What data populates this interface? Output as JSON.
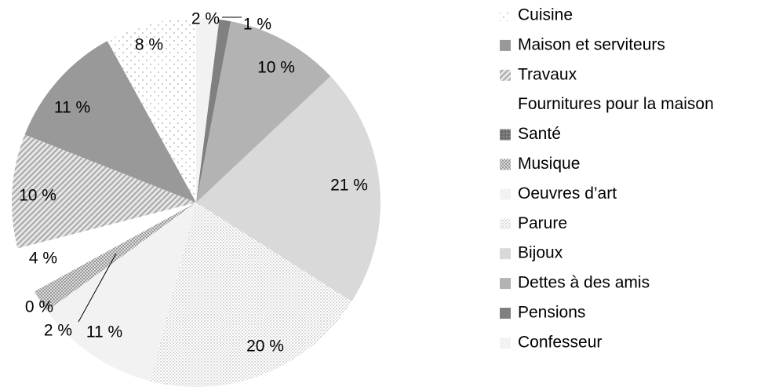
{
  "chart_data": {
    "type": "pie",
    "categories": [
      "Cuisine",
      "Maison et serviteurs",
      "Travaux",
      "Fournitures pour la maison",
      "Santé",
      "Musique",
      "Oeuvres d’art",
      "Parure",
      "Bijoux",
      "Dettes à des amis",
      "Pensions",
      "Confesseur"
    ],
    "values": [
      8,
      11,
      10,
      4,
      0,
      2,
      11,
      20,
      21,
      10,
      1,
      2
    ],
    "value_labels": [
      "8 %",
      "11 %",
      "10 %",
      "4 %",
      "0 %",
      "2 %",
      "11 %",
      "20 %",
      "21 %",
      "10 %",
      "1 %",
      "2 %"
    ],
    "colors": [
      "#ffffff",
      "#999999",
      "#ffffff",
      "#ffffff",
      "#7a7a7a",
      "#ffffff",
      "#f2f2f2",
      "#ffffff",
      "#d9d9d9",
      "#b3b3b3",
      "#808080",
      "#f2f2f2"
    ],
    "patterns": [
      "sparse-dots",
      "none",
      "hatch",
      "none",
      "dark-dots",
      "checker",
      "none",
      "dense-dots",
      "none",
      "none",
      "none",
      "none"
    ],
    "direction": "counterclockwise",
    "legend": "right"
  }
}
